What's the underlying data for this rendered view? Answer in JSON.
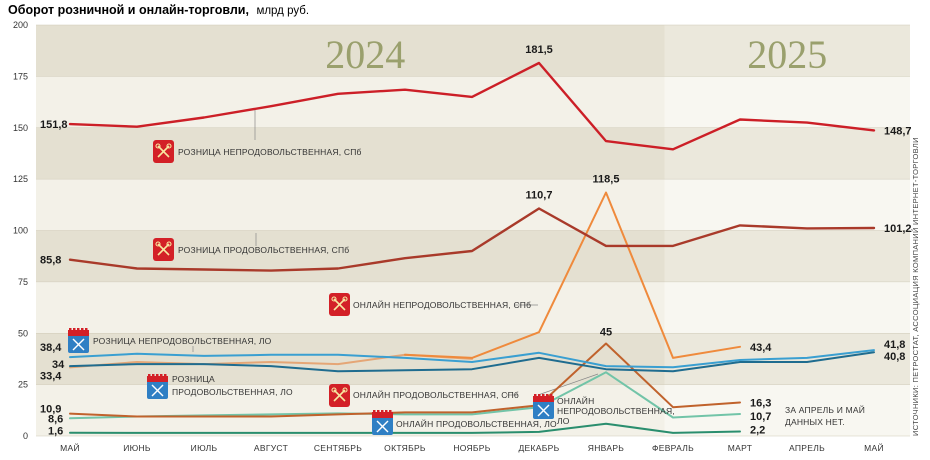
{
  "chart_data": {
    "type": "line",
    "title": "Оборот розничной и онлайн-торговли,",
    "unit": "млрд руб.",
    "year_labels": [
      "2024",
      "2025"
    ],
    "categories": [
      "МАЙ",
      "ИЮНЬ",
      "ИЮЛЬ",
      "АВГУСТ",
      "СЕНТЯБРЬ",
      "ОКТЯБРЬ",
      "НОЯБРЬ",
      "ДЕКАБРЬ",
      "ЯНВАРЬ",
      "ФЕВРАЛЬ",
      "МАРТ",
      "АПРЕЛЬ",
      "МАЙ"
    ],
    "ylim": [
      0,
      200
    ],
    "yticks": [
      "0",
      "25",
      "50",
      "75",
      "100",
      "125",
      "150",
      "175",
      "200"
    ],
    "series": [
      {
        "name": "РОЗНИЦА НЕПРОДОВОЛЬСТВЕННАЯ, СПБ",
        "color": "#cc1f27",
        "values": [
          151.8,
          150.5,
          155,
          160.5,
          166.5,
          168.5,
          165,
          181.5,
          143.5,
          139.5,
          154,
          152.5,
          148.7
        ]
      },
      {
        "name": "РОЗНИЦА ПРОДОВОЛЬСТВЕННАЯ, СПБ",
        "color": "#a93a2a",
        "values": [
          85.8,
          81.5,
          81,
          80.5,
          81.5,
          86.5,
          90,
          110.7,
          92.5,
          92.5,
          102.5,
          101,
          101.2
        ]
      },
      {
        "name": "ОНЛАЙН НЕПРОДОВОЛЬСТВЕННАЯ, СПБ",
        "color": "#ef8a3c",
        "values": [
          null,
          null,
          null,
          null,
          null,
          39.5,
          38,
          50.5,
          118.5,
          38,
          43.4,
          null,
          null
        ]
      },
      {
        "name": "РОЗНИЦА НЕПРОДОВОЛЬСТВЕННАЯ, ЛО",
        "color": "#3a9fd1",
        "values": [
          38.4,
          40,
          39,
          39.5,
          39.5,
          38,
          36,
          40.5,
          34,
          33.5,
          37,
          38,
          41.8
        ]
      },
      {
        "name": "РОЗНИЦА ПРОДОВОЛЬСТВЕННАЯ, ЛО",
        "color": "#1f6c8f",
        "values": [
          34,
          35,
          35,
          34,
          31.5,
          32,
          32.5,
          38,
          32.5,
          31.5,
          36,
          36,
          40.8
        ]
      },
      {
        "name": "РОЗНИЦА ПРОДОВОЛЬСТВЕННАЯ, ЛО (2)",
        "color": "#e5a676",
        "values": [
          33.4,
          36,
          35,
          36,
          35,
          39.5,
          37.5,
          null,
          null,
          null,
          null,
          null,
          null
        ]
      },
      {
        "name": "ОНЛАЙН ПРОДОВОЛЬСТВЕННАЯ, СПБ",
        "color": "#c0622c",
        "values": [
          10.9,
          9.5,
          9.5,
          9.5,
          10.5,
          11.5,
          11.5,
          15,
          45,
          14,
          16.3,
          null,
          null
        ]
      },
      {
        "name": "ОНЛАЙН НЕПРОДОВОЛЬСТВЕННАЯ, ЛО",
        "color": "#72c4a8",
        "values": [
          8.6,
          9.5,
          10,
          10.5,
          11,
          10.5,
          10.5,
          14,
          31,
          9,
          10.7,
          null,
          null
        ]
      },
      {
        "name": "ОНЛАЙН ПРОДОВОЛЬСТВЕННАЯ, ЛО",
        "color": "#2a8e6e",
        "values": [
          1.6,
          1.5,
          1.5,
          1.5,
          1.5,
          1.5,
          1.5,
          2,
          6,
          1.5,
          2.2,
          null,
          null
        ]
      }
    ],
    "data_labels": [
      {
        "text": "151,8",
        "series": 0,
        "index": 0
      },
      {
        "text": "181,5",
        "series": 0,
        "index": 7
      },
      {
        "text": "148,7",
        "series": 0,
        "index": 12
      },
      {
        "text": "85,8",
        "series": 1,
        "index": 0
      },
      {
        "text": "110,7",
        "series": 1,
        "index": 7
      },
      {
        "text": "101,2",
        "series": 1,
        "index": 12
      },
      {
        "text": "118,5",
        "series": 2,
        "index": 8
      },
      {
        "text": "43,4",
        "series": 2,
        "index": 10
      },
      {
        "text": "38,4",
        "series": 3,
        "index": 0
      },
      {
        "text": "41,8",
        "series": 3,
        "index": 12
      },
      {
        "text": "34",
        "series": 4,
        "index": 0
      },
      {
        "text": "40,8",
        "series": 4,
        "index": 12
      },
      {
        "text": "33,4",
        "series": 5,
        "index": 0
      },
      {
        "text": "45",
        "series": 6,
        "index": 8
      },
      {
        "text": "16,3",
        "series": 6,
        "index": 10
      },
      {
        "text": "10,9",
        "series": 6,
        "index": 0
      },
      {
        "text": "8,6",
        "series": 7,
        "index": 0
      },
      {
        "text": "10,7",
        "series": 7,
        "index": 10
      },
      {
        "text": "1,6",
        "series": 8,
        "index": 0
      },
      {
        "text": "2,2",
        "series": 8,
        "index": 10
      }
    ],
    "series_labels": {
      "retail_nonfood_spb": "РОЗНИЦА НЕПРОДОВОЛЬСТВЕННАЯ, СПб",
      "retail_food_spb": "РОЗНИЦА ПРОДОВОЛЬСТВЕННАЯ, СПб",
      "online_nonfood_spb": "ОНЛАЙН НЕПРОДОВОЛЬСТВЕННАЯ, СПб",
      "retail_nonfood_lo": "РОЗНИЦА НЕПРОДОВОЛЬСТВЕННАЯ, ЛО",
      "retail_food_lo_1": "РОЗНИЦА",
      "retail_food_lo_2": "ПРОДОВОЛЬСТВЕННАЯ, ЛО",
      "online_food_spb": "ОНЛАЙН ПРОДОВОЛЬСТВЕННАЯ, СПб",
      "online_nonfood_lo_1": "ОНЛАЙН",
      "online_nonfood_lo_2": "НЕПРОДОВОЛЬСТВЕННАЯ,",
      "online_nonfood_lo_3": "ЛО",
      "online_food_lo": "ОНЛАЙН ПРОДОВОЛЬСТВЕННАЯ, ЛО"
    },
    "note_lines": [
      "ЗА АПРЕЛЬ И МАЙ",
      "ДАННЫХ НЕТ."
    ],
    "source": "ИСТОЧНИКИ: ПЕТРОСТАТ, АССОЦИАЦИЯ КОМПАНИЙ ИНТЕРНЕТ-ТОРГОВЛИ",
    "grid": true,
    "legend": "inline"
  }
}
